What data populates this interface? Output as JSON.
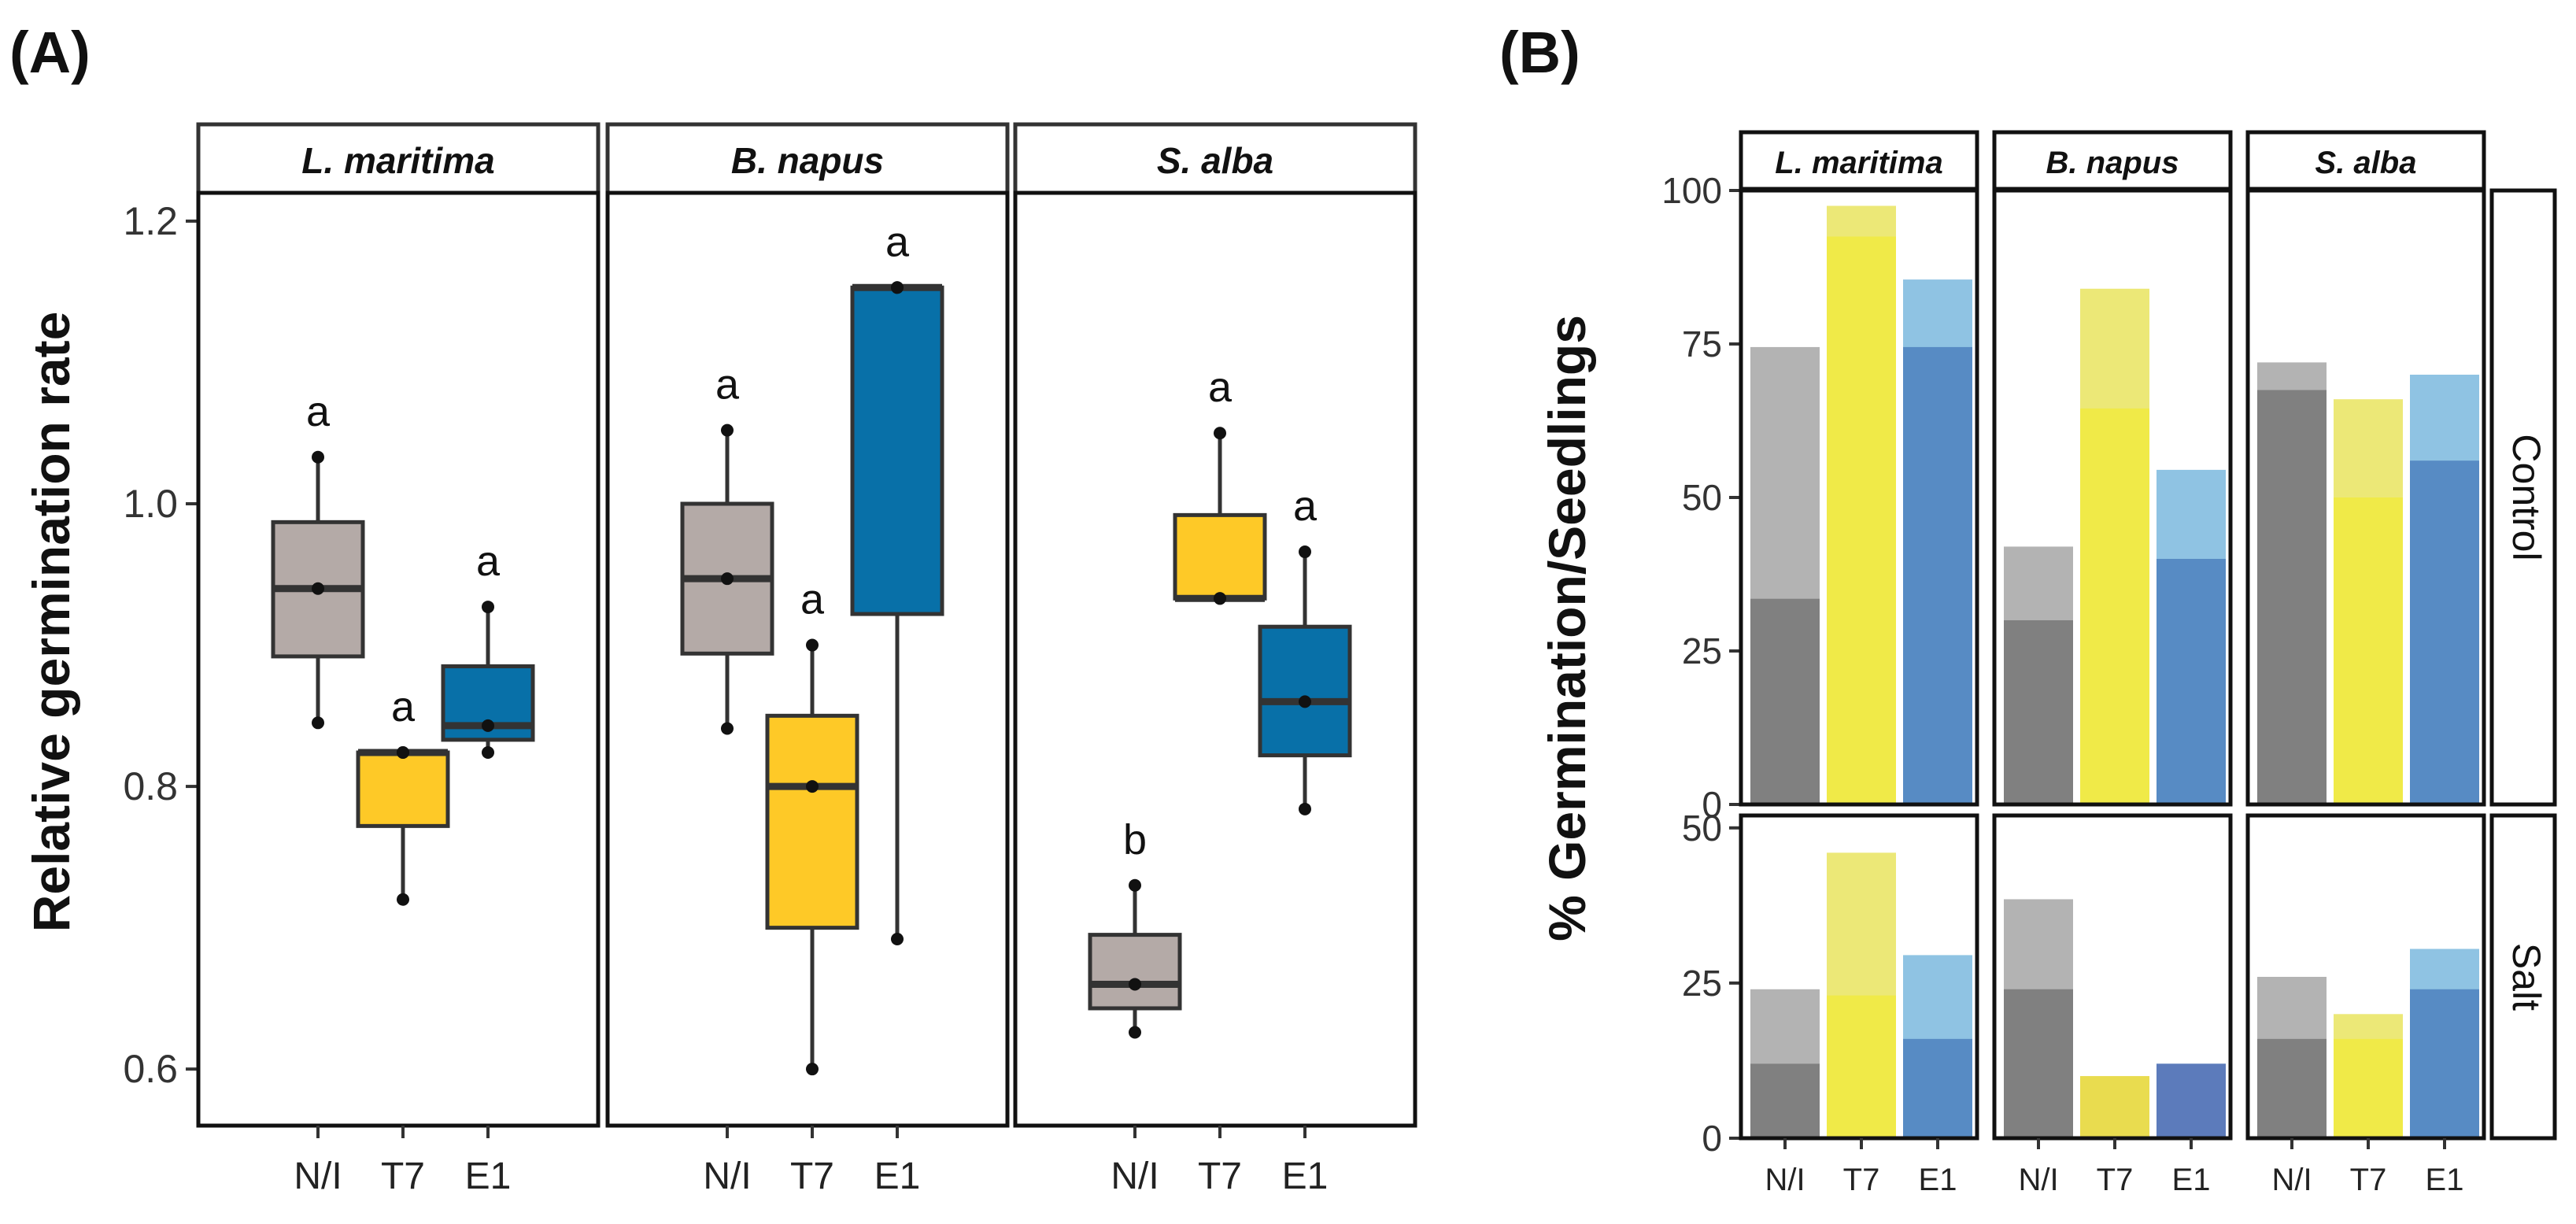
{
  "panel_labels": {
    "a": "(A)",
    "b": "(B)"
  },
  "colors": {
    "N/I": "#b4aaa7",
    "T7": "#fec927",
    "E1": "#0870a8",
    "bar_light": {
      "N/I": "#b3b3b3",
      "T7": "#ece877",
      "E1": "#8fc3e3"
    },
    "bar_dark": {
      "N/I": "#808080",
      "T7": "#f0ea48",
      "E1": "#578bc4"
    },
    "bar_dark_alt": {
      "N/I": "#808080",
      "T7": "#e9dc4f",
      "E1": "#5c7bbb"
    }
  },
  "chart_data": [
    {
      "type": "box",
      "title": "(A)",
      "ylabel": "Relative germination rate",
      "ylim": [
        0.56,
        1.22
      ],
      "yticks": [
        0.6,
        0.8,
        1.0,
        1.2
      ],
      "ytick_labels": [
        "0.6",
        "0.8",
        "1.0",
        "1.2"
      ],
      "categories": [
        "N/I",
        "T7",
        "E1"
      ],
      "facets": [
        {
          "label": "L. maritima",
          "boxes": [
            {
              "cat": "N/I",
              "whisker_low": 0.845,
              "q1": 0.892,
              "median": 0.94,
              "q3": 0.987,
              "whisker_high": 1.033,
              "points": [
                0.845,
                0.94,
                1.033
              ],
              "letter": "a"
            },
            {
              "cat": "T7",
              "whisker_low": 0.72,
              "q1": 0.772,
              "median": 0.824,
              "q3": 0.824,
              "whisker_high": 0.824,
              "points": [
                0.72,
                0.824,
                0.824
              ],
              "letter": "a"
            },
            {
              "cat": "E1",
              "whisker_low": 0.824,
              "q1": 0.833,
              "median": 0.843,
              "q3": 0.885,
              "whisker_high": 0.927,
              "points": [
                0.824,
                0.843,
                0.927
              ],
              "letter": "a"
            }
          ]
        },
        {
          "label": "B. napus",
          "boxes": [
            {
              "cat": "N/I",
              "whisker_low": 0.841,
              "q1": 0.894,
              "median": 0.947,
              "q3": 1.0,
              "whisker_high": 1.052,
              "points": [
                0.841,
                0.947,
                1.052
              ],
              "letter": "a"
            },
            {
              "cat": "T7",
              "whisker_low": 0.6,
              "q1": 0.7,
              "median": 0.8,
              "q3": 0.85,
              "whisker_high": 0.9,
              "points": [
                0.6,
                0.8,
                0.9
              ],
              "letter": "a"
            },
            {
              "cat": "E1",
              "whisker_low": 0.692,
              "q1": 0.922,
              "median": 1.153,
              "q3": 1.153,
              "whisker_high": 1.153,
              "points": [
                0.692,
                1.153,
                1.153
              ],
              "letter": "a"
            }
          ]
        },
        {
          "label": "S. alba",
          "boxes": [
            {
              "cat": "N/I",
              "whisker_low": 0.626,
              "q1": 0.643,
              "median": 0.66,
              "q3": 0.695,
              "whisker_high": 0.73,
              "points": [
                0.626,
                0.66,
                0.73
              ],
              "letter": "b"
            },
            {
              "cat": "T7",
              "whisker_low": 0.933,
              "q1": 0.933,
              "median": 0.933,
              "q3": 0.992,
              "whisker_high": 1.05,
              "points": [
                0.933,
                0.933,
                1.05
              ],
              "letter": "a"
            },
            {
              "cat": "E1",
              "whisker_low": 0.784,
              "q1": 0.822,
              "median": 0.86,
              "q3": 0.913,
              "whisker_high": 0.966,
              "points": [
                0.784,
                0.86,
                0.966
              ],
              "letter": "a"
            }
          ]
        }
      ]
    },
    {
      "type": "bar",
      "title": "(B)",
      "ylabel": "% Germination/Seedlings",
      "categories": [
        "N/I",
        "T7",
        "E1"
      ],
      "columns": [
        "L. maritima",
        "B. napus",
        "S. alba"
      ],
      "series_description": [
        "germination (light, full bar)",
        "seedlings (dark, lower bar)"
      ],
      "rows": [
        {
          "label": "Control",
          "ylim": [
            0,
            100
          ],
          "yticks": [
            0,
            25,
            50,
            75,
            100
          ],
          "ytick_labels": [
            "0",
            "25",
            "50",
            "75",
            "100"
          ],
          "facets": [
            {
              "label": "L. maritima",
              "germination": [
                74.5,
                97.5,
                85.5
              ],
              "seedlings": [
                33.5,
                92.5,
                74.5
              ]
            },
            {
              "label": "B. napus",
              "germination": [
                42,
                84,
                54.5
              ],
              "seedlings": [
                30,
                64.5,
                40
              ]
            },
            {
              "label": "S. alba",
              "germination": [
                72,
                66,
                70
              ],
              "seedlings": [
                67.5,
                50,
                56
              ]
            }
          ]
        },
        {
          "label": "Salt",
          "ylim": [
            0,
            52
          ],
          "yticks": [
            0,
            25,
            50
          ],
          "ytick_labels": [
            "0",
            "25",
            "50"
          ],
          "facets": [
            {
              "label": "L. maritima",
              "germination": [
                24,
                46,
                29.5
              ],
              "seedlings": [
                12,
                23,
                16
              ]
            },
            {
              "label": "B. napus",
              "germination": [
                38.5,
                10,
                12
              ],
              "seedlings": [
                24,
                10,
                12
              ]
            },
            {
              "label": "S. alba",
              "germination": [
                26,
                20,
                30.5
              ],
              "seedlings": [
                16,
                16,
                24
              ]
            }
          ]
        }
      ]
    }
  ]
}
